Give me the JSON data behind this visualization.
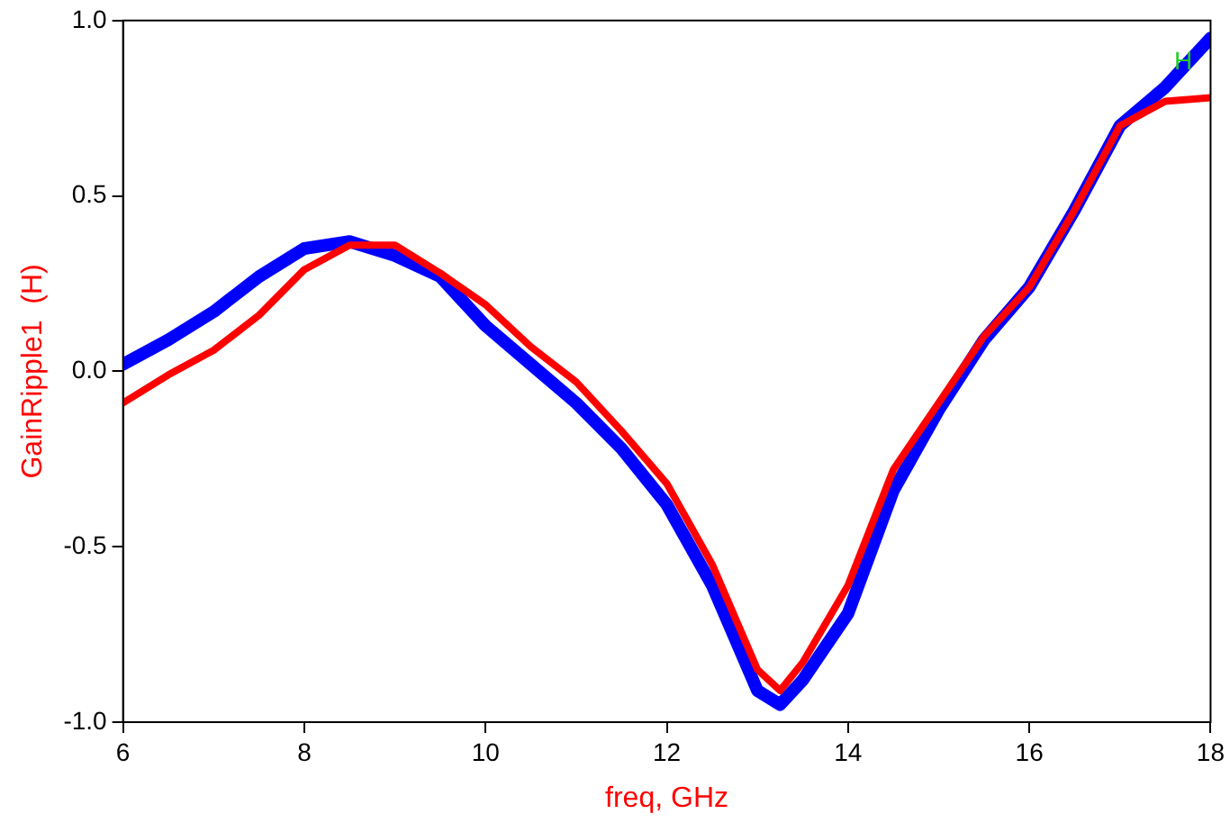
{
  "chart_data": {
    "type": "line",
    "xlabel": "freq, GHz",
    "ylabel": "GainRipple1  (H)",
    "xlim": [
      6,
      18
    ],
    "xticks": [
      6,
      8,
      10,
      12,
      14,
      16,
      18
    ],
    "ylim": [
      -1,
      1
    ],
    "yticks": [
      {
        "value": -1,
        "label": "-1.0"
      },
      {
        "value": -0.5,
        "label": "-0.5"
      },
      {
        "value": 0,
        "label": "0.0"
      },
      {
        "value": 0.5,
        "label": "0.5"
      },
      {
        "value": 1,
        "label": "1.0"
      }
    ],
    "x": [
      6,
      6.5,
      7,
      7.5,
      8,
      8.5,
      9,
      9.5,
      10,
      10.5,
      11,
      11.5,
      12,
      12.5,
      13,
      13.25,
      13.5,
      14,
      14.5,
      15,
      15.5,
      16,
      16.5,
      17,
      17.5,
      18
    ],
    "series": [
      {
        "color": "#ff0000",
        "values": [
          -0.09,
          -0.01,
          0.06,
          0.16,
          0.29,
          0.36,
          0.36,
          0.28,
          0.19,
          0.07,
          -0.03,
          -0.17,
          -0.32,
          -0.55,
          -0.85,
          -0.91,
          -0.83,
          -0.61,
          -0.28,
          -0.09,
          0.1,
          0.24,
          0.46,
          0.7,
          0.77,
          0.78
        ]
      },
      {
        "color": "#0000ff",
        "values": [
          0.02,
          0.09,
          0.17,
          0.27,
          0.35,
          0.37,
          0.33,
          0.27,
          0.13,
          0.02,
          -0.09,
          -0.22,
          -0.38,
          -0.61,
          -0.91,
          -0.95,
          -0.88,
          -0.69,
          -0.34,
          -0.11,
          0.09,
          0.24,
          0.46,
          0.7,
          0.81,
          0.95
        ]
      }
    ],
    "annotations": [
      {
        "text": "H",
        "x": 17.7,
        "y": 0.88
      }
    ],
    "grid": false,
    "legend": false,
    "marker": "none",
    "line_style": "solid"
  }
}
